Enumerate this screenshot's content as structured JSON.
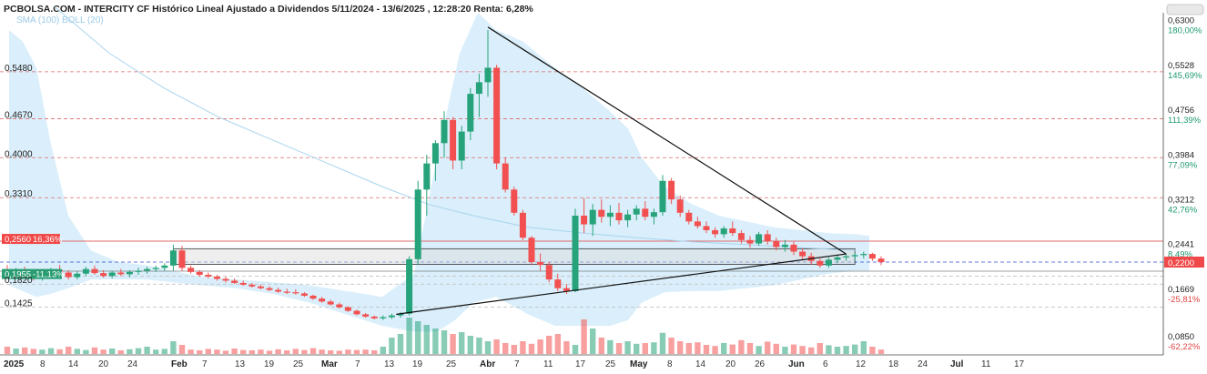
{
  "header": {
    "title": "PCBOLSA.COM - INTERCITY CF Histórico Lineal Ajustado a Dividendos 5/11/2024 - 13/6/2025 , 12:28:20 Renta: 6,28%",
    "indicator_sma": "SMA (100)",
    "indicator_boll": "BOLL (20)"
  },
  "colors": {
    "up": "#26a37a",
    "down": "#f25050",
    "band_fill": "#cde9f9",
    "sma": "#a9d4ee",
    "grid_red": "#e06a6a",
    "grid_gray": "#b9b9b9",
    "last_price": "#2c4fd1"
  },
  "left_labels": [
    {
      "value": 0.548,
      "text": "0,5480"
    },
    {
      "value": 0.467,
      "text": "0,4670"
    },
    {
      "value": 0.4,
      "text": "0,4000"
    },
    {
      "value": 0.331,
      "text": "0,3310"
    },
    {
      "value": 0.256,
      "text": "0,2560",
      "extra": "16,36%",
      "badge": "red"
    },
    {
      "value": 0.1955,
      "text": "0,1955",
      "extra": "-11,13%",
      "badge": "green"
    },
    {
      "value": 0.182,
      "text": "0,1820"
    },
    {
      "value": 0.1425,
      "text": "0,1425"
    }
  ],
  "right_labels": [
    {
      "value": 0.63,
      "text": "0,6300",
      "pct": "180,00%",
      "pct_color": "#1f9a6e"
    },
    {
      "value": 0.5528,
      "text": "0,5528",
      "pct": "145,69%",
      "pct_color": "#1f9a6e"
    },
    {
      "value": 0.4756,
      "text": "0,4756",
      "pct": "111,39%",
      "pct_color": "#1f9a6e"
    },
    {
      "value": 0.3984,
      "text": "0,3984",
      "pct": "77,09%",
      "pct_color": "#1f9a6e"
    },
    {
      "value": 0.3212,
      "text": "0,3212",
      "pct": "42,76%",
      "pct_color": "#1f9a6e"
    },
    {
      "value": 0.2441,
      "text": "0,2441",
      "pct": "8,49%",
      "pct_color": "#1f9a6e"
    },
    {
      "value": 0.1669,
      "text": "0,1669",
      "pct": "-25,81%",
      "pct_color": "#e04545"
    },
    {
      "value": 0.085,
      "text": "0,0850",
      "pct": "-62,22%",
      "pct_color": "#e04545"
    }
  ],
  "last_price": {
    "value": 0.22,
    "text": "0,2200"
  },
  "x_labels": [
    {
      "text": "2025",
      "bold": true
    },
    {
      "text": "8"
    },
    {
      "text": "14"
    },
    {
      "text": "20"
    },
    {
      "text": "24"
    },
    {
      "text": "Feb",
      "bold": true
    },
    {
      "text": "7"
    },
    {
      "text": "13"
    },
    {
      "text": "19"
    },
    {
      "text": "25"
    },
    {
      "text": "Mar",
      "bold": true
    },
    {
      "text": "7"
    },
    {
      "text": "13"
    },
    {
      "text": "19"
    },
    {
      "text": "25"
    },
    {
      "text": "Abr",
      "bold": true
    },
    {
      "text": "7"
    },
    {
      "text": "11"
    },
    {
      "text": "17"
    },
    {
      "text": "25"
    },
    {
      "text": "May",
      "bold": true
    },
    {
      "text": "8"
    },
    {
      "text": "14"
    },
    {
      "text": "20"
    },
    {
      "text": "26"
    },
    {
      "text": "Jun",
      "bold": true
    },
    {
      "text": "6"
    },
    {
      "text": "12"
    },
    {
      "text": "18"
    },
    {
      "text": "24"
    },
    {
      "text": "Jul",
      "bold": true
    },
    {
      "text": "11"
    },
    {
      "text": "17"
    }
  ],
  "chart_data": {
    "type": "candlestick",
    "title": "PCBOLSA.COM - INTERCITY CF Histórico Lineal Ajustado a Dividendos 5/11/2024 - 13/6/2025 , 12:28:20 Renta: 6,28%",
    "y_range": [
      0.07,
      0.66
    ],
    "ohlc": [
      [
        0.205,
        0.215,
        0.195,
        0.2
      ],
      [
        0.2,
        0.21,
        0.195,
        0.205
      ],
      [
        0.205,
        0.212,
        0.198,
        0.2
      ],
      [
        0.2,
        0.205,
        0.188,
        0.192
      ],
      [
        0.192,
        0.202,
        0.188,
        0.198
      ],
      [
        0.198,
        0.21,
        0.195,
        0.206
      ],
      [
        0.206,
        0.215,
        0.2,
        0.202
      ],
      [
        0.202,
        0.206,
        0.19,
        0.194
      ],
      [
        0.194,
        0.204,
        0.19,
        0.2
      ],
      [
        0.2,
        0.212,
        0.196,
        0.208
      ],
      [
        0.208,
        0.214,
        0.198,
        0.201
      ],
      [
        0.201,
        0.206,
        0.193,
        0.196
      ],
      [
        0.196,
        0.205,
        0.192,
        0.202
      ],
      [
        0.202,
        0.208,
        0.196,
        0.199
      ],
      [
        0.199,
        0.206,
        0.194,
        0.203
      ],
      [
        0.203,
        0.21,
        0.198,
        0.205
      ],
      [
        0.205,
        0.212,
        0.2,
        0.208
      ],
      [
        0.208,
        0.214,
        0.203,
        0.21
      ],
      [
        0.21,
        0.218,
        0.205,
        0.214
      ],
      [
        0.214,
        0.25,
        0.205,
        0.24
      ],
      [
        0.24,
        0.248,
        0.205,
        0.21
      ],
      [
        0.21,
        0.214,
        0.2,
        0.203
      ],
      [
        0.203,
        0.206,
        0.195,
        0.198
      ],
      [
        0.198,
        0.202,
        0.192,
        0.195
      ],
      [
        0.195,
        0.198,
        0.188,
        0.191
      ],
      [
        0.191,
        0.195,
        0.185,
        0.188
      ],
      [
        0.188,
        0.192,
        0.182,
        0.184
      ],
      [
        0.184,
        0.188,
        0.179,
        0.181
      ],
      [
        0.181,
        0.184,
        0.176,
        0.178
      ],
      [
        0.178,
        0.181,
        0.173,
        0.175
      ],
      [
        0.175,
        0.178,
        0.17,
        0.172
      ],
      [
        0.172,
        0.176,
        0.167,
        0.169
      ],
      [
        0.169,
        0.174,
        0.165,
        0.168
      ],
      [
        0.168,
        0.173,
        0.164,
        0.166
      ],
      [
        0.166,
        0.168,
        0.16,
        0.162
      ],
      [
        0.162,
        0.164,
        0.155,
        0.157
      ],
      [
        0.157,
        0.16,
        0.15,
        0.152
      ],
      [
        0.152,
        0.155,
        0.145,
        0.147
      ],
      [
        0.147,
        0.15,
        0.14,
        0.142
      ],
      [
        0.142,
        0.144,
        0.134,
        0.136
      ],
      [
        0.136,
        0.138,
        0.128,
        0.13
      ],
      [
        0.13,
        0.132,
        0.124,
        0.126
      ],
      [
        0.126,
        0.128,
        0.121,
        0.123
      ],
      [
        0.123,
        0.128,
        0.12,
        0.125
      ],
      [
        0.125,
        0.131,
        0.122,
        0.128
      ],
      [
        0.128,
        0.134,
        0.124,
        0.131
      ],
      [
        0.131,
        0.23,
        0.128,
        0.225
      ],
      [
        0.225,
        0.36,
        0.215,
        0.345
      ],
      [
        0.345,
        0.405,
        0.3,
        0.39
      ],
      [
        0.39,
        0.43,
        0.36,
        0.425
      ],
      [
        0.425,
        0.48,
        0.4,
        0.465
      ],
      [
        0.465,
        0.47,
        0.38,
        0.395
      ],
      [
        0.395,
        0.455,
        0.38,
        0.445
      ],
      [
        0.445,
        0.52,
        0.43,
        0.51
      ],
      [
        0.51,
        0.545,
        0.47,
        0.53
      ],
      [
        0.53,
        0.62,
        0.505,
        0.555
      ],
      [
        0.555,
        0.56,
        0.38,
        0.39
      ],
      [
        0.39,
        0.4,
        0.34,
        0.345
      ],
      [
        0.345,
        0.35,
        0.3,
        0.305
      ],
      [
        0.305,
        0.31,
        0.258,
        0.262
      ],
      [
        0.262,
        0.265,
        0.215,
        0.22
      ],
      [
        0.22,
        0.235,
        0.205,
        0.215
      ],
      [
        0.215,
        0.22,
        0.185,
        0.19
      ],
      [
        0.19,
        0.2,
        0.17,
        0.175
      ],
      [
        0.175,
        0.182,
        0.165,
        0.17
      ],
      [
        0.17,
        0.312,
        0.168,
        0.3
      ],
      [
        0.3,
        0.33,
        0.27,
        0.285
      ],
      [
        0.285,
        0.32,
        0.265,
        0.31
      ],
      [
        0.31,
        0.328,
        0.288,
        0.298
      ],
      [
        0.298,
        0.318,
        0.282,
        0.305
      ],
      [
        0.305,
        0.322,
        0.285,
        0.292
      ],
      [
        0.292,
        0.31,
        0.28,
        0.302
      ],
      [
        0.302,
        0.318,
        0.292,
        0.312
      ],
      [
        0.312,
        0.325,
        0.292,
        0.298
      ],
      [
        0.298,
        0.312,
        0.285,
        0.306
      ],
      [
        0.306,
        0.37,
        0.3,
        0.36
      ],
      [
        0.36,
        0.365,
        0.32,
        0.328
      ],
      [
        0.328,
        0.335,
        0.298,
        0.305
      ],
      [
        0.305,
        0.31,
        0.285,
        0.29
      ],
      [
        0.29,
        0.298,
        0.278,
        0.282
      ],
      [
        0.282,
        0.29,
        0.27,
        0.275
      ],
      [
        0.275,
        0.28,
        0.262,
        0.268
      ],
      [
        0.268,
        0.282,
        0.262,
        0.278
      ],
      [
        0.278,
        0.29,
        0.265,
        0.27
      ],
      [
        0.27,
        0.275,
        0.252,
        0.258
      ],
      [
        0.258,
        0.265,
        0.245,
        0.252
      ],
      [
        0.252,
        0.272,
        0.248,
        0.268
      ],
      [
        0.268,
        0.275,
        0.25,
        0.256
      ],
      [
        0.256,
        0.262,
        0.24,
        0.246
      ],
      [
        0.246,
        0.258,
        0.238,
        0.25
      ],
      [
        0.25,
        0.255,
        0.232,
        0.238
      ],
      [
        0.238,
        0.244,
        0.225,
        0.23
      ],
      [
        0.23,
        0.236,
        0.215,
        0.222
      ],
      [
        0.222,
        0.226,
        0.21,
        0.214
      ],
      [
        0.214,
        0.228,
        0.21,
        0.224
      ],
      [
        0.224,
        0.232,
        0.218,
        0.228
      ],
      [
        0.228,
        0.234,
        0.222,
        0.23
      ],
      [
        0.23,
        0.236,
        0.224,
        0.232
      ],
      [
        0.232,
        0.238,
        0.226,
        0.234
      ],
      [
        0.234,
        0.236,
        0.222,
        0.226
      ],
      [
        0.226,
        0.23,
        0.215,
        0.22
      ]
    ],
    "volume": [
      0.2,
      0.15,
      0.18,
      0.14,
      0.12,
      0.16,
      0.13,
      0.2,
      0.14,
      0.11,
      0.18,
      0.12,
      0.15,
      0.1,
      0.13,
      0.16,
      0.2,
      0.12,
      0.14,
      0.35,
      0.25,
      0.12,
      0.1,
      0.14,
      0.12,
      0.09,
      0.15,
      0.11,
      0.1,
      0.12,
      0.09,
      0.13,
      0.1,
      0.14,
      0.11,
      0.16,
      0.12,
      0.1,
      0.09,
      0.12,
      0.11,
      0.12,
      0.1,
      0.2,
      0.45,
      0.55,
      1.0,
      0.9,
      0.8,
      0.7,
      0.65,
      0.55,
      0.6,
      0.5,
      0.45,
      0.35,
      0.4,
      0.3,
      0.25,
      0.35,
      0.28,
      0.4,
      0.5,
      0.55,
      0.35,
      0.25,
      0.95,
      0.7,
      0.45,
      0.38,
      0.3,
      0.35,
      0.28,
      0.3,
      0.32,
      0.58,
      0.45,
      0.35,
      0.3,
      0.32,
      0.25,
      0.22,
      0.3,
      0.26,
      0.38,
      0.3,
      0.22,
      0.34,
      0.28,
      0.2,
      0.26,
      0.22,
      0.18,
      0.3,
      0.24,
      0.2,
      0.22,
      0.26,
      0.35,
      0.2,
      0.12
    ],
    "sma_100": [
      [
        0.7,
        0.2
      ],
      [
        0.6,
        0.4
      ],
      [
        0.55,
        0.63
      ],
      [
        0.48,
        1.0
      ],
      [
        0.43,
        1.2
      ],
      [
        0.385,
        1.4
      ],
      [
        0.34,
        1.6
      ],
      [
        0.3,
        1.8
      ],
      [
        0.27,
        2.0
      ],
      [
        0.255,
        2.2
      ],
      [
        0.248,
        2.5
      ],
      [
        0.245,
        2.8
      ],
      [
        0.245,
        3.0
      ]
    ],
    "trendlines": [
      {
        "from": [
          55.0,
          0.625
        ],
        "to": [
          96.0,
          0.234
        ]
      },
      {
        "from": [
          44.5,
          0.13
        ],
        "to": [
          96.0,
          0.234
        ]
      }
    ],
    "consolidation_box": {
      "x_start": 19.0,
      "x_end": 97.0,
      "y_high": 0.243,
      "y_low": 0.216
    },
    "reference_lines": {
      "red_dashed": [
        0.548,
        0.467,
        0.4,
        0.331
      ],
      "red_solid": [
        0.256
      ],
      "gray_dashed": [
        0.1955,
        0.182,
        0.1425
      ],
      "last_price_dashed": 0.22
    }
  }
}
